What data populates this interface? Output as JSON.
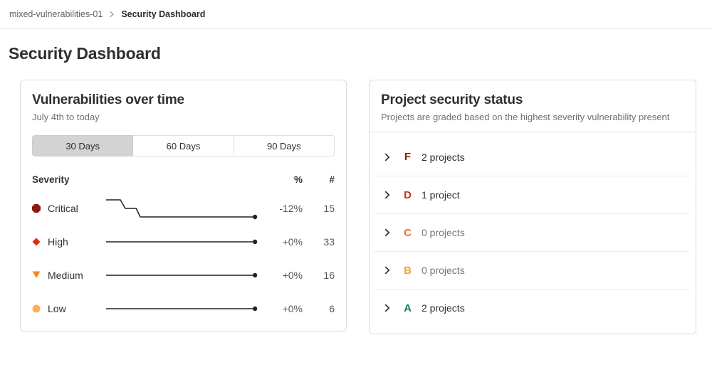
{
  "breadcrumb": {
    "parent": "mixed-vulnerabilities-01",
    "current": "Security Dashboard"
  },
  "page": {
    "title": "Security Dashboard"
  },
  "vuln_card": {
    "title": "Vulnerabilities over time",
    "subtitle": "July 4th to today",
    "tabs": [
      {
        "label": "30 Days",
        "selected": true
      },
      {
        "label": "60 Days",
        "selected": false
      },
      {
        "label": "90 Days",
        "selected": false
      }
    ],
    "table": {
      "headers": {
        "severity": "Severity",
        "percent": "%",
        "count": "#"
      },
      "rows": [
        {
          "severity": "Critical",
          "icon": "severity-critical-icon",
          "color": "#8b1a10",
          "percent": "-12%",
          "count": "15",
          "spark": [
            [
              0,
              2
            ],
            [
              21,
              2
            ],
            [
              28,
              14
            ],
            [
              44,
              14
            ],
            [
              50,
              26
            ],
            [
              218,
              26
            ]
          ]
        },
        {
          "severity": "High",
          "icon": "severity-high-icon",
          "color": "#dd2b0e",
          "percent": "+0%",
          "count": "33",
          "spark": [
            [
              0,
              14
            ],
            [
              218,
              14
            ]
          ]
        },
        {
          "severity": "Medium",
          "icon": "severity-medium-icon",
          "color": "#f5871f",
          "percent": "+0%",
          "count": "16",
          "spark": [
            [
              0,
              14
            ],
            [
              218,
              14
            ]
          ]
        },
        {
          "severity": "Low",
          "icon": "severity-low-icon",
          "color": "#fab152",
          "percent": "+0%",
          "count": "6",
          "spark": [
            [
              0,
              14
            ],
            [
              218,
              14
            ]
          ]
        }
      ],
      "spark_color": "#222222"
    }
  },
  "status_card": {
    "title": "Project security status",
    "subtitle": "Projects are graded based on the highest severity vulnerability present",
    "rows": [
      {
        "grade": "F",
        "color": "#8b1a10",
        "count": "2 projects",
        "muted": false
      },
      {
        "grade": "D",
        "color": "#c9351b",
        "count": "1 project",
        "muted": false
      },
      {
        "grade": "C",
        "color": "#ec6f22",
        "count": "0 projects",
        "muted": true
      },
      {
        "grade": "B",
        "color": "#f0a328",
        "count": "0 projects",
        "muted": true
      },
      {
        "grade": "A",
        "color": "#108548",
        "count": "2 projects",
        "muted": false
      }
    ]
  }
}
